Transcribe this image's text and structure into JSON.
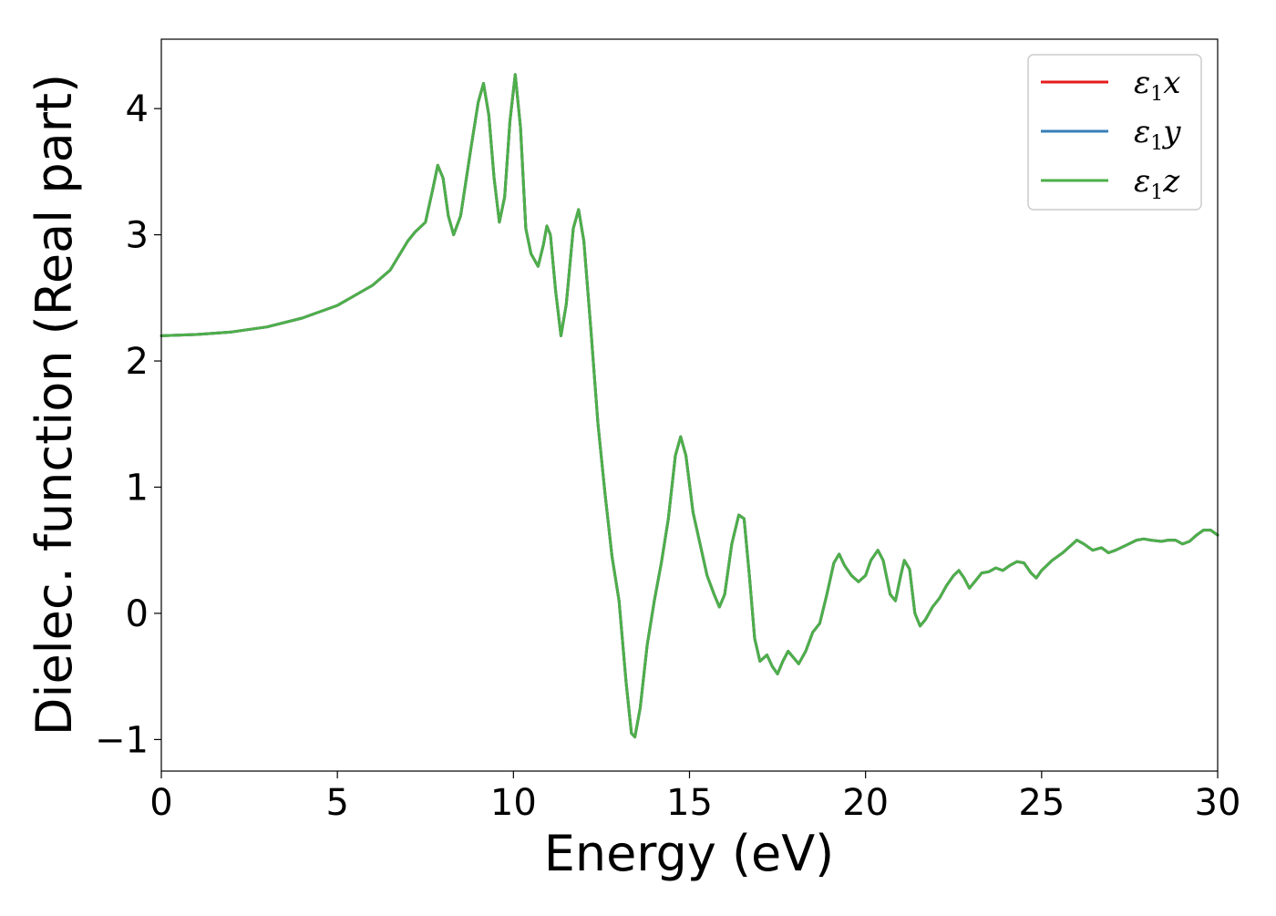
{
  "chart_data": {
    "type": "line",
    "xlabel": "Energy (eV)",
    "ylabel": "Dielec. function (Real part)",
    "xlim": [
      0,
      30
    ],
    "ylim": [
      -1.25,
      4.55
    ],
    "x_ticks": [
      0,
      5,
      10,
      15,
      20,
      25,
      30
    ],
    "x_tick_labels": [
      "0",
      "5",
      "10",
      "15",
      "20",
      "25",
      "30"
    ],
    "y_ticks": [
      -1,
      0,
      1,
      2,
      3,
      4
    ],
    "y_tick_labels": [
      "−1",
      "0",
      "1",
      "2",
      "3",
      "4"
    ],
    "grid": false,
    "legend_position": "top-right",
    "legend": [
      {
        "symbol": "ε",
        "sub": "1",
        "axis": "x",
        "color": "#e41a1c"
      },
      {
        "symbol": "ε",
        "sub": "1",
        "axis": "y",
        "color": "#377eb8"
      },
      {
        "symbol": "ε",
        "sub": "1",
        "axis": "z",
        "color": "#4daf4a"
      }
    ],
    "series_points": [
      [
        0.0,
        2.2
      ],
      [
        1.0,
        2.21
      ],
      [
        2.0,
        2.23
      ],
      [
        3.0,
        2.27
      ],
      [
        4.0,
        2.34
      ],
      [
        5.0,
        2.44
      ],
      [
        6.0,
        2.6
      ],
      [
        6.5,
        2.72
      ],
      [
        7.0,
        2.95
      ],
      [
        7.2,
        3.02
      ],
      [
        7.5,
        3.1
      ],
      [
        7.7,
        3.35
      ],
      [
        7.85,
        3.55
      ],
      [
        8.0,
        3.45
      ],
      [
        8.15,
        3.15
      ],
      [
        8.3,
        3.0
      ],
      [
        8.5,
        3.15
      ],
      [
        8.8,
        3.7
      ],
      [
        9.0,
        4.05
      ],
      [
        9.15,
        4.2
      ],
      [
        9.3,
        3.95
      ],
      [
        9.45,
        3.45
      ],
      [
        9.6,
        3.1
      ],
      [
        9.75,
        3.3
      ],
      [
        9.9,
        3.9
      ],
      [
        10.05,
        4.27
      ],
      [
        10.2,
        3.85
      ],
      [
        10.35,
        3.05
      ],
      [
        10.5,
        2.85
      ],
      [
        10.7,
        2.75
      ],
      [
        10.85,
        2.92
      ],
      [
        10.95,
        3.07
      ],
      [
        11.05,
        3.0
      ],
      [
        11.2,
        2.55
      ],
      [
        11.35,
        2.2
      ],
      [
        11.5,
        2.45
      ],
      [
        11.7,
        3.05
      ],
      [
        11.85,
        3.2
      ],
      [
        12.0,
        2.95
      ],
      [
        12.2,
        2.25
      ],
      [
        12.4,
        1.5
      ],
      [
        12.6,
        0.95
      ],
      [
        12.8,
        0.45
      ],
      [
        13.0,
        0.1
      ],
      [
        13.2,
        -0.55
      ],
      [
        13.35,
        -0.95
      ],
      [
        13.45,
        -0.98
      ],
      [
        13.6,
        -0.75
      ],
      [
        13.8,
        -0.25
      ],
      [
        14.0,
        0.1
      ],
      [
        14.2,
        0.4
      ],
      [
        14.4,
        0.75
      ],
      [
        14.6,
        1.25
      ],
      [
        14.75,
        1.4
      ],
      [
        14.9,
        1.25
      ],
      [
        15.1,
        0.8
      ],
      [
        15.3,
        0.55
      ],
      [
        15.5,
        0.3
      ],
      [
        15.7,
        0.15
      ],
      [
        15.85,
        0.05
      ],
      [
        16.0,
        0.15
      ],
      [
        16.2,
        0.55
      ],
      [
        16.4,
        0.78
      ],
      [
        16.55,
        0.75
      ],
      [
        16.7,
        0.3
      ],
      [
        16.85,
        -0.2
      ],
      [
        17.0,
        -0.38
      ],
      [
        17.2,
        -0.33
      ],
      [
        17.35,
        -0.42
      ],
      [
        17.5,
        -0.48
      ],
      [
        17.65,
        -0.38
      ],
      [
        17.8,
        -0.3
      ],
      [
        17.95,
        -0.35
      ],
      [
        18.1,
        -0.4
      ],
      [
        18.3,
        -0.3
      ],
      [
        18.5,
        -0.15
      ],
      [
        18.7,
        -0.08
      ],
      [
        18.9,
        0.15
      ],
      [
        19.1,
        0.4
      ],
      [
        19.25,
        0.47
      ],
      [
        19.4,
        0.38
      ],
      [
        19.6,
        0.3
      ],
      [
        19.8,
        0.25
      ],
      [
        20.0,
        0.3
      ],
      [
        20.15,
        0.42
      ],
      [
        20.35,
        0.5
      ],
      [
        20.5,
        0.42
      ],
      [
        20.7,
        0.15
      ],
      [
        20.85,
        0.1
      ],
      [
        21.0,
        0.3
      ],
      [
        21.1,
        0.42
      ],
      [
        21.25,
        0.35
      ],
      [
        21.4,
        0.0
      ],
      [
        21.55,
        -0.1
      ],
      [
        21.7,
        -0.05
      ],
      [
        21.9,
        0.05
      ],
      [
        22.1,
        0.12
      ],
      [
        22.3,
        0.22
      ],
      [
        22.5,
        0.3
      ],
      [
        22.65,
        0.34
      ],
      [
        22.8,
        0.28
      ],
      [
        22.95,
        0.2
      ],
      [
        23.1,
        0.25
      ],
      [
        23.3,
        0.32
      ],
      [
        23.5,
        0.33
      ],
      [
        23.7,
        0.36
      ],
      [
        23.9,
        0.34
      ],
      [
        24.1,
        0.38
      ],
      [
        24.3,
        0.41
      ],
      [
        24.5,
        0.4
      ],
      [
        24.7,
        0.32
      ],
      [
        24.85,
        0.28
      ],
      [
        25.0,
        0.34
      ],
      [
        25.3,
        0.42
      ],
      [
        25.6,
        0.48
      ],
      [
        25.8,
        0.53
      ],
      [
        26.0,
        0.58
      ],
      [
        26.2,
        0.55
      ],
      [
        26.45,
        0.5
      ],
      [
        26.7,
        0.52
      ],
      [
        26.9,
        0.48
      ],
      [
        27.1,
        0.5
      ],
      [
        27.4,
        0.54
      ],
      [
        27.7,
        0.58
      ],
      [
        27.9,
        0.59
      ],
      [
        28.1,
        0.58
      ],
      [
        28.4,
        0.57
      ],
      [
        28.6,
        0.58
      ],
      [
        28.8,
        0.58
      ],
      [
        29.0,
        0.55
      ],
      [
        29.2,
        0.57
      ],
      [
        29.4,
        0.62
      ],
      [
        29.6,
        0.66
      ],
      [
        29.8,
        0.66
      ],
      [
        30.0,
        0.62
      ]
    ],
    "series": [
      {
        "name": "ε1x",
        "color": "#e41a1c"
      },
      {
        "name": "ε1y",
        "color": "#377eb8"
      },
      {
        "name": "ε1z",
        "color": "#4daf4a"
      }
    ]
  }
}
